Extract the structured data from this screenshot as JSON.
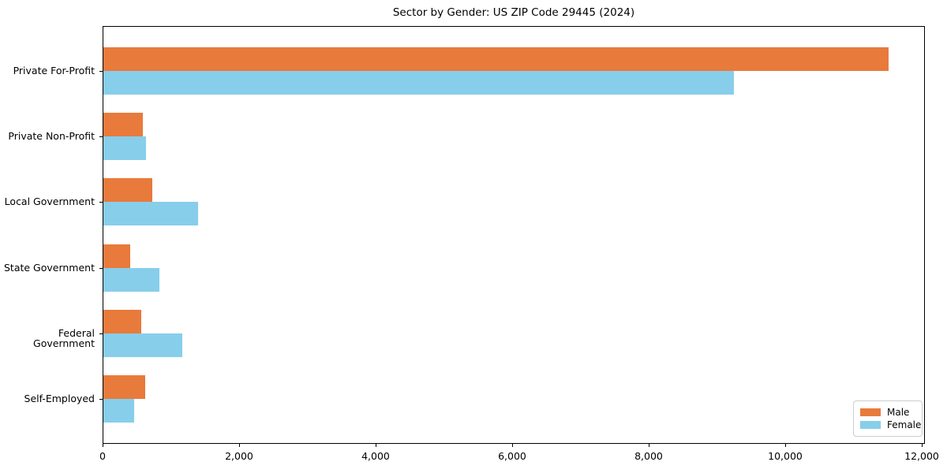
{
  "chart_data": {
    "type": "bar",
    "orientation": "horizontal",
    "title": "Sector by Gender: US ZIP Code 29445 (2024)",
    "categories": [
      "Private For-Profit",
      "Private Non-Profit",
      "Local Government",
      "State Government",
      "Federal Government",
      "Self-Employed"
    ],
    "series": [
      {
        "name": "Male",
        "color": "#E87A3C",
        "values": [
          11500,
          580,
          720,
          390,
          560,
          610
        ]
      },
      {
        "name": "Female",
        "color": "#87CEEB",
        "values": [
          9240,
          620,
          1390,
          820,
          1160,
          450
        ]
      }
    ],
    "xlabel": "",
    "ylabel": "",
    "xlim": [
      0,
      12046
    ],
    "xticks": [
      0,
      2000,
      4000,
      6000,
      8000,
      10000,
      12000
    ],
    "xtick_labels": [
      "0",
      "2,000",
      "4,000",
      "6,000",
      "8,000",
      "10,000",
      "12,000"
    ],
    "grid": false,
    "legend": {
      "position": "lower-right",
      "entries": [
        "Male",
        "Female"
      ]
    }
  }
}
